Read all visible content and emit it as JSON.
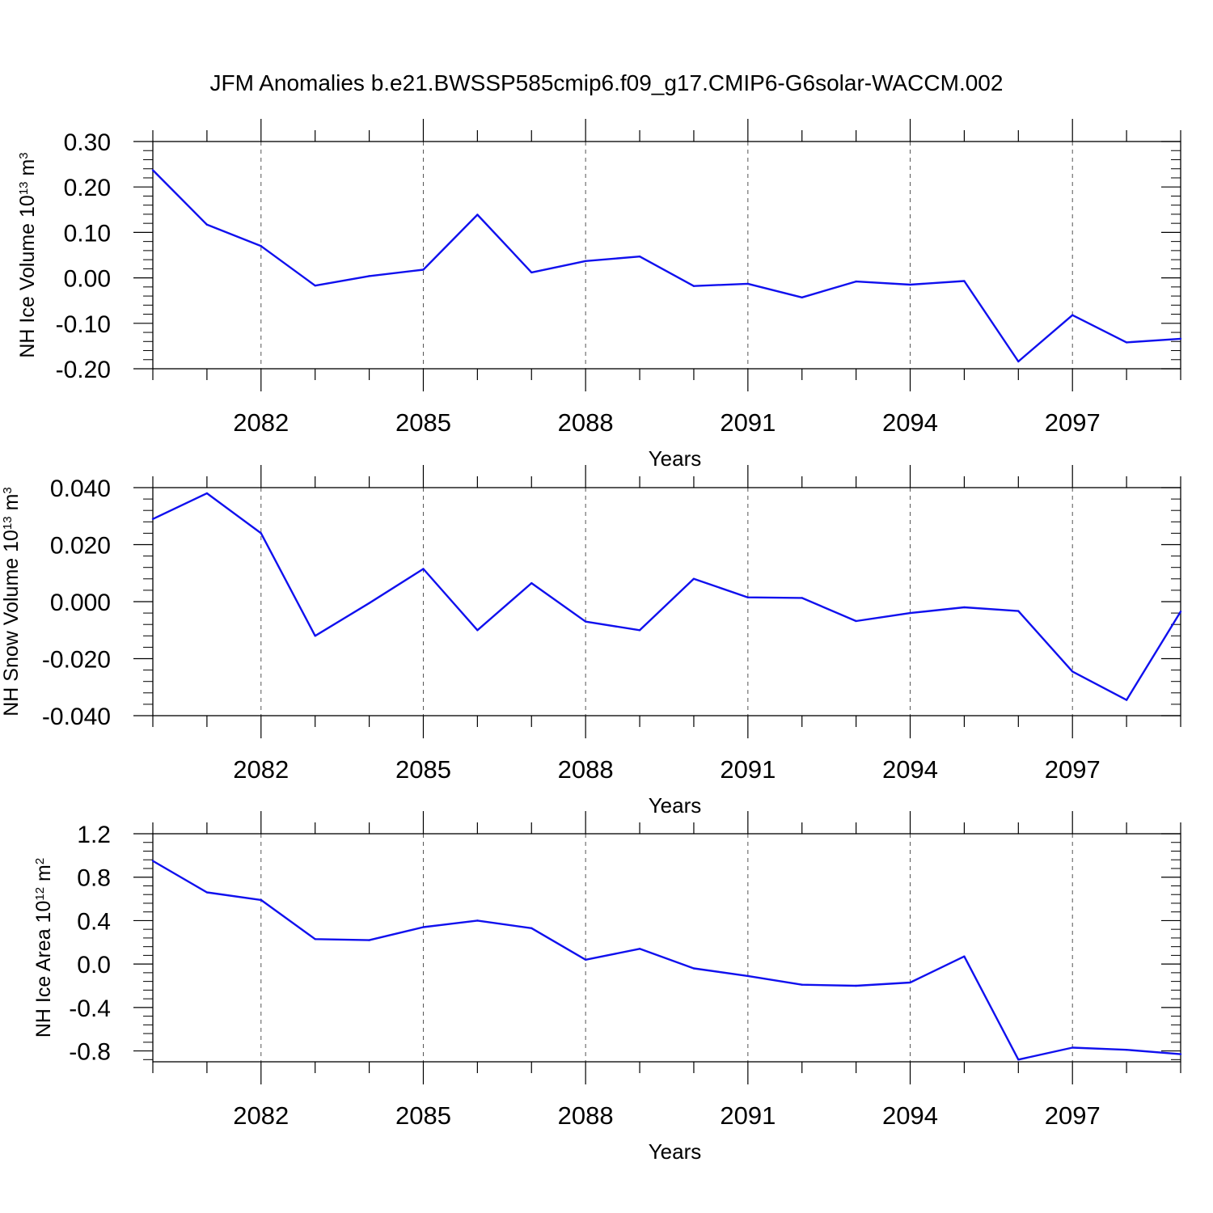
{
  "figure": {
    "title": "JFM Anomalies b.e21.BWSSP585cmip6.f09_g17.CMIP6-G6solar-WACCM.002"
  },
  "colors": {
    "series": "#1010ee",
    "axes": "#000000",
    "grid": "#555555"
  },
  "chart_data": [
    {
      "type": "line",
      "ylabel": {
        "main": "NH Ice Volume 10",
        "sup": "13",
        "unit": " m",
        "unit_sup": "3"
      },
      "xlabel": "Years",
      "xlim": [
        2080,
        2099
      ],
      "ylim": [
        -0.2,
        0.3
      ],
      "yticks": [
        0.3,
        0.2,
        0.1,
        0.0,
        -0.1,
        -0.2
      ],
      "ytick_labels": [
        "0.30",
        "0.20",
        "0.10",
        "0.00",
        "-0.10",
        "-0.20"
      ],
      "xticks": [
        2082,
        2085,
        2088,
        2091,
        2094,
        2097
      ],
      "xtick_labels": [
        "2082",
        "2085",
        "2088",
        "2091",
        "2094",
        "2097"
      ],
      "grid": "vertical-dashed",
      "series": [
        {
          "x": [
            2080,
            2081,
            2082,
            2083,
            2084,
            2085,
            2086,
            2087,
            2088,
            2089,
            2090,
            2091,
            2092,
            2093,
            2094,
            2095,
            2096,
            2097,
            2098,
            2099
          ],
          "values": [
            0.237,
            0.117,
            0.07,
            -0.017,
            0.004,
            0.018,
            0.139,
            0.012,
            0.037,
            0.047,
            -0.018,
            -0.013,
            -0.043,
            -0.008,
            -0.015,
            -0.007,
            -0.184,
            -0.082,
            -0.142,
            -0.134
          ]
        }
      ]
    },
    {
      "type": "line",
      "ylabel": {
        "main": "NH Snow Volume 10",
        "sup": "13",
        "unit": " m",
        "unit_sup": "3"
      },
      "xlabel": "Years",
      "xlim": [
        2080,
        2099
      ],
      "ylim": [
        -0.04,
        0.04
      ],
      "yticks": [
        0.04,
        0.02,
        0.0,
        -0.02,
        -0.04
      ],
      "ytick_labels": [
        "0.040",
        "0.020",
        "0.000",
        "-0.020",
        "-0.040"
      ],
      "xticks": [
        2082,
        2085,
        2088,
        2091,
        2094,
        2097
      ],
      "xtick_labels": [
        "2082",
        "2085",
        "2088",
        "2091",
        "2094",
        "2097"
      ],
      "grid": "vertical-dashed",
      "series": [
        {
          "x": [
            2080,
            2081,
            2082,
            2083,
            2084,
            2085,
            2086,
            2087,
            2088,
            2089,
            2090,
            2091,
            2092,
            2093,
            2094,
            2095,
            2096,
            2097,
            2098,
            2099
          ],
          "values": [
            0.029,
            0.038,
            0.024,
            -0.012,
            -0.0005,
            0.0115,
            -0.01,
            0.0065,
            -0.007,
            -0.01,
            0.008,
            0.0015,
            0.0013,
            -0.0068,
            -0.004,
            -0.002,
            -0.0033,
            -0.0245,
            -0.0345,
            -0.0035
          ]
        }
      ]
    },
    {
      "type": "line",
      "ylabel": {
        "main": "NH Ice Area 10",
        "sup": "12",
        "unit": " m",
        "unit_sup": "2"
      },
      "xlabel": "Years",
      "xlim": [
        2080,
        2099
      ],
      "ylim": [
        -0.9,
        1.2
      ],
      "yticks": [
        1.2,
        0.8,
        0.4,
        0.0,
        -0.4,
        -0.8
      ],
      "ytick_labels": [
        "1.2",
        "0.8",
        "0.4",
        "0.0",
        "-0.4",
        "-0.8"
      ],
      "xticks": [
        2082,
        2085,
        2088,
        2091,
        2094,
        2097
      ],
      "xtick_labels": [
        "2082",
        "2085",
        "2088",
        "2091",
        "2094",
        "2097"
      ],
      "grid": "vertical-dashed",
      "series": [
        {
          "x": [
            2080,
            2081,
            2082,
            2083,
            2084,
            2085,
            2086,
            2087,
            2088,
            2089,
            2090,
            2091,
            2092,
            2093,
            2094,
            2095,
            2096,
            2097,
            2098,
            2099
          ],
          "values": [
            0.95,
            0.66,
            0.59,
            0.23,
            0.22,
            0.34,
            0.4,
            0.33,
            0.04,
            0.14,
            -0.04,
            -0.11,
            -0.19,
            -0.2,
            -0.17,
            0.07,
            -0.88,
            -0.77,
            -0.79,
            -0.83
          ]
        }
      ]
    }
  ]
}
